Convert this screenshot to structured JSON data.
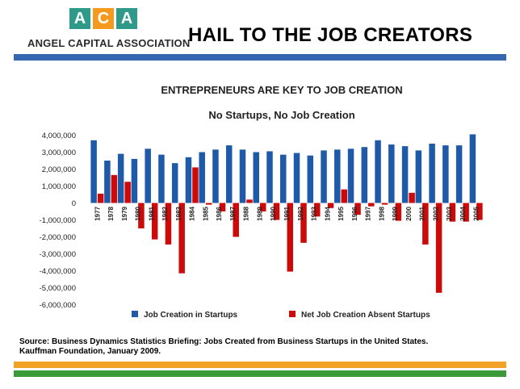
{
  "header": {
    "logo_letters": [
      "A",
      "C",
      "A"
    ],
    "logo_colors": [
      "#2f9a8a",
      "#f39a1f",
      "#2f9a8a"
    ],
    "logo_name": "ANGEL CAPITAL ASSOCIATION",
    "slide_title": "HAIL TO THE JOB CREATORS"
  },
  "colors": {
    "rule_blue": "#3566b0",
    "rule_orange": "#f2a224",
    "rule_green": "#3a9a3a",
    "series_blue": "#1f5aa8",
    "series_red": "#cc0a0a"
  },
  "footer": {
    "source_line1": "Source: Business Dynamics Statistics Briefing: Jobs Created from Business Startups in the United States.",
    "source_line2": "Kauffman Foundation, January 2009."
  },
  "chart_data": {
    "type": "bar",
    "title": "ENTREPRENEURS ARE KEY TO JOB CREATION",
    "subtitle": "No Startups, No Job Creation",
    "xlabel": "",
    "ylabel": "",
    "ylim": [
      -6000000,
      4000000
    ],
    "y_ticks": [
      4000000,
      3000000,
      2000000,
      1000000,
      0,
      -1000000,
      -2000000,
      -3000000,
      -4000000,
      -5000000,
      -6000000
    ],
    "y_tick_labels": [
      "4,000,000",
      "3,000,000",
      "2,000,000",
      "1,000,000",
      "0",
      "-1,000,000",
      "-2,000,000",
      "-3,000,000",
      "-4,000,000",
      "-5,000,000",
      "-6,000,000"
    ],
    "categories": [
      "1977",
      "1978",
      "1979",
      "1980",
      "1981",
      "1982",
      "1983",
      "1984",
      "1985",
      "1986",
      "1987",
      "1988",
      "1989",
      "1990",
      "1991",
      "1992",
      "1993",
      "1994",
      "1995",
      "1996",
      "1997",
      "1998",
      "1999",
      "2000",
      "2001",
      "2002",
      "2003",
      "2004",
      "2005"
    ],
    "series": [
      {
        "name": "Job Creation in Startups",
        "values": [
          3700000,
          2500000,
          2900000,
          2600000,
          3200000,
          2850000,
          2350000,
          2700000,
          3000000,
          3150000,
          3400000,
          3150000,
          3000000,
          3050000,
          2850000,
          2950000,
          2800000,
          3100000,
          3150000,
          3200000,
          3300000,
          3700000,
          3450000,
          3350000,
          3100000,
          3500000,
          3400000,
          3400000,
          4050000
        ]
      },
      {
        "name": "Net Job Creation Absent Startups",
        "values": [
          550000,
          1650000,
          1250000,
          -1500000,
          -2150000,
          -2450000,
          -4150000,
          2100000,
          -100000,
          -500000,
          -2000000,
          200000,
          -500000,
          -1000000,
          -4050000,
          -2350000,
          -800000,
          -300000,
          800000,
          -700000,
          -200000,
          -100000,
          -1050000,
          600000,
          -2450000,
          -5300000,
          -1100000,
          -1100000,
          -1000000
        ]
      }
    ],
    "legend": [
      "Job Creation in Startups",
      "Net Job Creation Absent Startups"
    ],
    "legend_position": "bottom",
    "grid": false
  }
}
